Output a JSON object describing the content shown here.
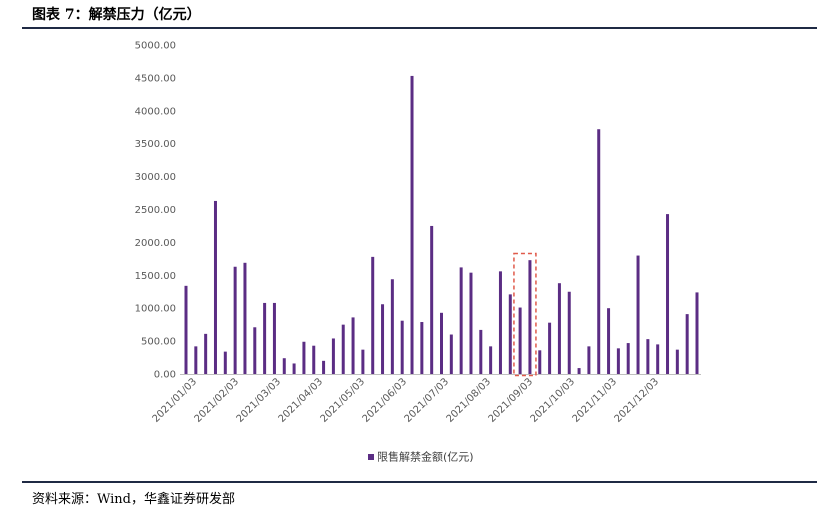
{
  "figure": {
    "title": "图表 7：解禁压力（亿元）",
    "source": "资料来源：Wind，华鑫证券研发部"
  },
  "chart_data": {
    "type": "bar",
    "y_ticks": [
      "5000.00",
      "4500.00",
      "4000.00",
      "3500.00",
      "3000.00",
      "2500.00",
      "2000.00",
      "1500.00",
      "1000.00",
      "500.00",
      "0.00"
    ],
    "ylim": [
      0,
      5000
    ],
    "x_tick_labels": [
      "2021/01/03",
      "2021/02/03",
      "2021/03/03",
      "2021/04/03",
      "2021/05/03",
      "2021/06/03",
      "2021/07/03",
      "2021/08/03",
      "2021/09/03",
      "2021/10/03",
      "2021/11/03",
      "2021/12/03"
    ],
    "series": [
      {
        "name": "限售解禁金额(亿元)",
        "color": "#5b2d84",
        "values": [
          1340,
          420,
          610,
          2630,
          340,
          1630,
          1690,
          710,
          1080,
          1080,
          240,
          160,
          490,
          430,
          200,
          540,
          750,
          860,
          370,
          1780,
          1060,
          1440,
          810,
          4530,
          790,
          2250,
          930,
          600,
          1620,
          1540,
          670,
          420,
          1560,
          1210,
          1010,
          1730,
          360,
          780,
          1380,
          1250,
          90,
          420,
          3720,
          1000,
          390,
          470,
          1800,
          530,
          450,
          2430,
          370,
          910,
          1240
        ]
      }
    ],
    "highlight": {
      "bar_index": 35,
      "style": "dashed-box",
      "color": "#e05a4a"
    },
    "legend": "bottom-center",
    "grid": false
  }
}
